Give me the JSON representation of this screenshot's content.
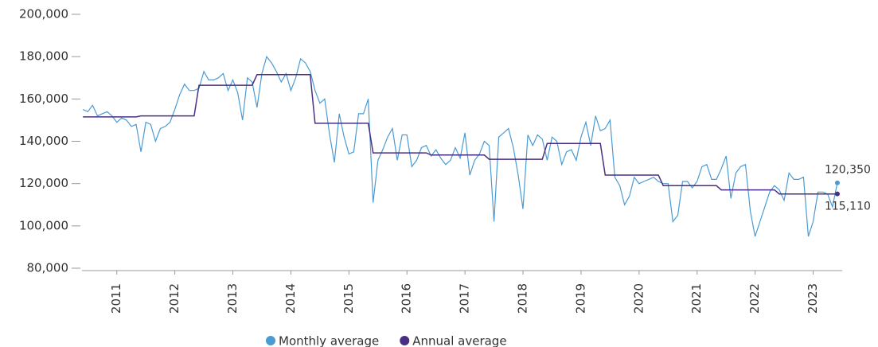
{
  "chart_data": {
    "type": "line",
    "x": [
      2010.417,
      2010.5,
      2010.583,
      2010.667,
      2010.75,
      2010.833,
      2010.917,
      2011,
      2011.083,
      2011.167,
      2011.25,
      2011.333,
      2011.417,
      2011.5,
      2011.583,
      2011.667,
      2011.75,
      2011.833,
      2011.917,
      2012,
      2012.083,
      2012.167,
      2012.25,
      2012.333,
      2012.417,
      2012.5,
      2012.583,
      2012.667,
      2012.75,
      2012.833,
      2012.917,
      2013,
      2013.083,
      2013.167,
      2013.25,
      2013.333,
      2013.417,
      2013.5,
      2013.583,
      2013.667,
      2013.75,
      2013.833,
      2013.917,
      2014,
      2014.083,
      2014.167,
      2014.25,
      2014.333,
      2014.417,
      2014.5,
      2014.583,
      2014.667,
      2014.75,
      2014.833,
      2014.917,
      2015,
      2015.083,
      2015.167,
      2015.25,
      2015.333,
      2015.417,
      2015.5,
      2015.583,
      2015.667,
      2015.75,
      2015.833,
      2015.917,
      2016,
      2016.083,
      2016.167,
      2016.25,
      2016.333,
      2016.417,
      2016.5,
      2016.583,
      2016.667,
      2016.75,
      2016.833,
      2016.917,
      2017,
      2017.083,
      2017.167,
      2017.25,
      2017.333,
      2017.417,
      2017.5,
      2017.583,
      2017.667,
      2017.75,
      2017.833,
      2017.917,
      2018,
      2018.083,
      2018.167,
      2018.25,
      2018.333,
      2018.417,
      2018.5,
      2018.583,
      2018.667,
      2018.75,
      2018.833,
      2018.917,
      2019,
      2019.083,
      2019.167,
      2019.25,
      2019.333,
      2019.417,
      2019.5,
      2019.583,
      2019.667,
      2019.75,
      2019.833,
      2019.917,
      2020,
      2020.083,
      2020.167,
      2020.25,
      2020.333,
      2020.417,
      2020.5,
      2020.583,
      2020.667,
      2020.75,
      2020.833,
      2020.917,
      2021,
      2021.083,
      2021.167,
      2021.25,
      2021.333,
      2021.417,
      2021.5,
      2021.583,
      2021.667,
      2021.75,
      2021.833,
      2021.917,
      2022,
      2022.083,
      2022.167,
      2022.25,
      2022.333,
      2022.417,
      2022.5,
      2022.583,
      2022.667,
      2022.75,
      2022.833,
      2022.917,
      2023,
      2023.083,
      2023.167,
      2023.25,
      2023.333,
      2023.417
    ],
    "series": [
      {
        "name": "Monthly average",
        "color": "#4a9bd4",
        "last_label": "120,350",
        "values": [
          155000,
          154000,
          157000,
          152000,
          153000,
          154000,
          152000,
          149000,
          151000,
          150000,
          147000,
          148000,
          135000,
          149000,
          148000,
          140000,
          146000,
          147000,
          149000,
          155000,
          162000,
          167000,
          164000,
          164000,
          165000,
          173000,
          169000,
          169000,
          170000,
          172000,
          164000,
          169000,
          163000,
          150000,
          170000,
          168000,
          156000,
          172000,
          180000,
          177000,
          173000,
          168000,
          172000,
          164000,
          170000,
          179000,
          177000,
          173000,
          164000,
          158000,
          160000,
          143000,
          130000,
          153000,
          142000,
          134000,
          135000,
          153000,
          153000,
          160000,
          111000,
          131000,
          136000,
          142000,
          146000,
          131000,
          143000,
          143000,
          128000,
          131000,
          137000,
          138000,
          133000,
          136000,
          132000,
          129000,
          131000,
          137000,
          132000,
          144000,
          124000,
          131000,
          134000,
          140000,
          138000,
          102000,
          142000,
          144000,
          146000,
          137000,
          124000,
          108000,
          143000,
          138000,
          143000,
          141000,
          131000,
          142000,
          140000,
          129000,
          135000,
          136000,
          131000,
          142000,
          149000,
          138000,
          152000,
          145000,
          146000,
          150000,
          123000,
          119000,
          110000,
          114000,
          123000,
          120000,
          121000,
          122000,
          123000,
          121000,
          120000,
          120000,
          102000,
          105000,
          121000,
          121000,
          118000,
          121000,
          128000,
          129000,
          122000,
          122000,
          127000,
          133000,
          113000,
          125000,
          128000,
          129000,
          107000,
          95000,
          102000,
          109000,
          116000,
          119000,
          117000,
          112000,
          125000,
          122000,
          122000,
          123000,
          95000,
          102000,
          116000,
          116000,
          115000,
          109000,
          120350
        ]
      },
      {
        "name": "Annual average",
        "color": "#4b2e83",
        "last_label": "115,110",
        "values": [
          151500,
          151500,
          151500,
          151500,
          151500,
          151500,
          151500,
          151500,
          151500,
          151500,
          151500,
          151500,
          152000,
          152000,
          152000,
          152000,
          152000,
          152000,
          152000,
          152000,
          152000,
          152000,
          152000,
          152000,
          166500,
          166500,
          166500,
          166500,
          166500,
          166500,
          166500,
          166500,
          166500,
          166500,
          166500,
          166500,
          171500,
          171500,
          171500,
          171500,
          171500,
          171500,
          171500,
          171500,
          171500,
          171500,
          171500,
          171500,
          148500,
          148500,
          148500,
          148500,
          148500,
          148500,
          148500,
          148500,
          148500,
          148500,
          148500,
          148500,
          134500,
          134500,
          134500,
          134500,
          134500,
          134500,
          134500,
          134500,
          134500,
          134500,
          134500,
          134500,
          133500,
          133500,
          133500,
          133500,
          133500,
          133500,
          133500,
          133500,
          133500,
          133500,
          133500,
          133500,
          131500,
          131500,
          131500,
          131500,
          131500,
          131500,
          131500,
          131500,
          131500,
          131500,
          131500,
          131500,
          139000,
          139000,
          139000,
          139000,
          139000,
          139000,
          139000,
          139000,
          139000,
          139000,
          139000,
          139000,
          124000,
          124000,
          124000,
          124000,
          124000,
          124000,
          124000,
          124000,
          124000,
          124000,
          124000,
          124000,
          119000,
          119000,
          119000,
          119000,
          119000,
          119000,
          119000,
          119000,
          119000,
          119000,
          119000,
          119000,
          117000,
          117000,
          117000,
          117000,
          117000,
          117000,
          117000,
          117000,
          117000,
          117000,
          117000,
          117000,
          115110,
          115110,
          115110,
          115110,
          115110,
          115110,
          115110,
          115110,
          115110,
          115110,
          115110,
          115110,
          115110
        ]
      }
    ],
    "xlim": [
      2010.4,
      2023.5
    ],
    "xticks": [
      2011,
      2012,
      2013,
      2014,
      2015,
      2016,
      2017,
      2018,
      2019,
      2020,
      2021,
      2022,
      2023
    ],
    "ylim": [
      80000,
      200000
    ],
    "yticks": [
      {
        "value": 80000,
        "label": "80,000"
      },
      {
        "value": 100000,
        "label": "100,000"
      },
      {
        "value": 120000,
        "label": "120,000"
      },
      {
        "value": 140000,
        "label": "140,000"
      },
      {
        "value": 160000,
        "label": "160,000"
      },
      {
        "value": 180000,
        "label": "180,000"
      },
      {
        "value": 200000,
        "label": "200,000"
      }
    ],
    "grid": false
  }
}
